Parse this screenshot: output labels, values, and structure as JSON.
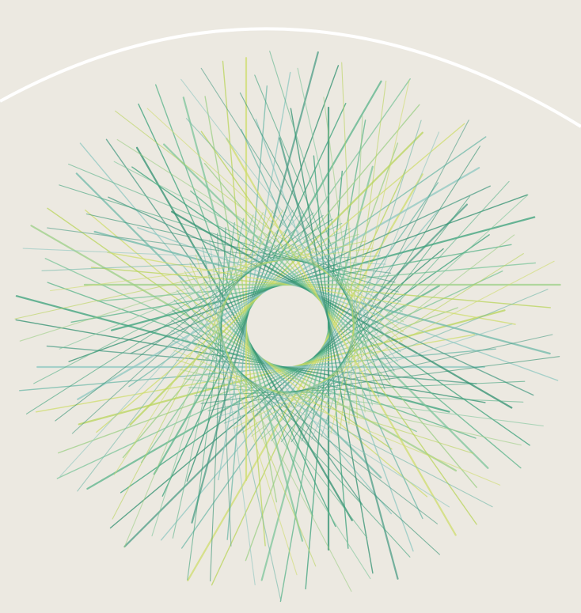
{
  "artwork": {
    "subject": "string-art-rosette",
    "background_color": "#ece9e1",
    "arc_color": "#ffffff",
    "center_hole_color": "#ece9e1",
    "line_colors": [
      "#2f8f6f",
      "#3aa07a",
      "#5ab38a",
      "#7cc49a",
      "#9ccf85",
      "#b9d45a",
      "#cfdc6c",
      "#6fb8a8",
      "#8dc7c0",
      "#4c9c86"
    ],
    "spoke_count": 72,
    "line_opacity": 0.75
  }
}
